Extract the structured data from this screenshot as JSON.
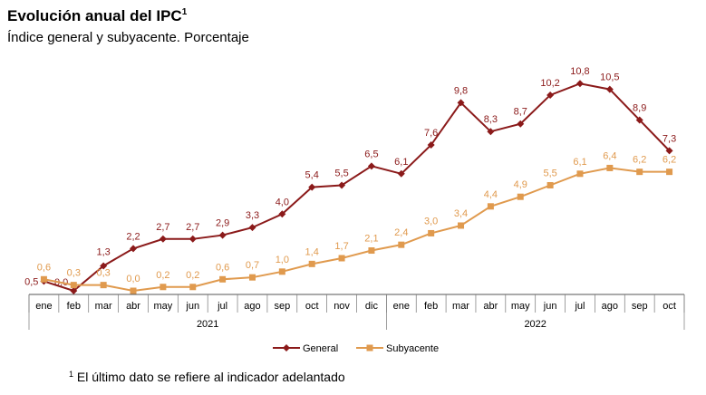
{
  "chart_data": {
    "type": "line",
    "title": "Evolución anual del IPC",
    "title_sup": "1",
    "subtitle": "Índice general y subyacente. Porcentaje",
    "categories": [
      "ene",
      "feb",
      "mar",
      "abr",
      "may",
      "jun",
      "jul",
      "ago",
      "sep",
      "oct",
      "nov",
      "dic",
      "ene",
      "feb",
      "mar",
      "abr",
      "may",
      "jun",
      "jul",
      "ago",
      "sep",
      "oct"
    ],
    "year_groups": [
      {
        "label": "2021",
        "start": 0,
        "end": 11
      },
      {
        "label": "2022",
        "start": 12,
        "end": 21
      }
    ],
    "series": [
      {
        "name": "General",
        "color": "#8b1a1a",
        "marker": "diamond",
        "values": [
          0.5,
          0.0,
          1.3,
          2.2,
          2.7,
          2.7,
          2.9,
          3.3,
          4.0,
          5.4,
          5.5,
          6.5,
          6.1,
          7.6,
          9.8,
          8.3,
          8.7,
          10.2,
          10.8,
          10.5,
          8.9,
          7.3
        ],
        "labels": [
          "0,5",
          "0,0",
          "1,3",
          "2,2",
          "2,7",
          "2,7",
          "2,9",
          "3,3",
          "4,0",
          "5,4",
          "5,5",
          "6,5",
          "6,1",
          "7,6",
          "9,8",
          "8,3",
          "8,7",
          "10,2",
          "10,8",
          "10,5",
          "8,9",
          "7,3"
        ]
      },
      {
        "name": "Subyacente",
        "color": "#e09a4e",
        "marker": "square",
        "values": [
          0.6,
          0.3,
          0.3,
          0.0,
          0.2,
          0.2,
          0.6,
          0.7,
          1.0,
          1.4,
          1.7,
          2.1,
          2.4,
          3.0,
          3.4,
          4.4,
          4.9,
          5.5,
          6.1,
          6.4,
          6.2,
          6.2
        ],
        "labels": [
          "0,6",
          "0,3",
          "0,3",
          "0,0",
          "0,2",
          "0,2",
          "0,6",
          "0,7",
          "1,0",
          "1,4",
          "1,7",
          "2,1",
          "2,4",
          "3,0",
          "3,4",
          "4,4",
          "4,9",
          "5,5",
          "6,1",
          "6,4",
          "6,2",
          "6,2"
        ]
      }
    ],
    "ylim": [
      0,
      11
    ],
    "grid": false,
    "legend": "bottom-center"
  },
  "footnote": {
    "sup": "1",
    "text": "El último dato se refiere al indicador adelantado"
  }
}
